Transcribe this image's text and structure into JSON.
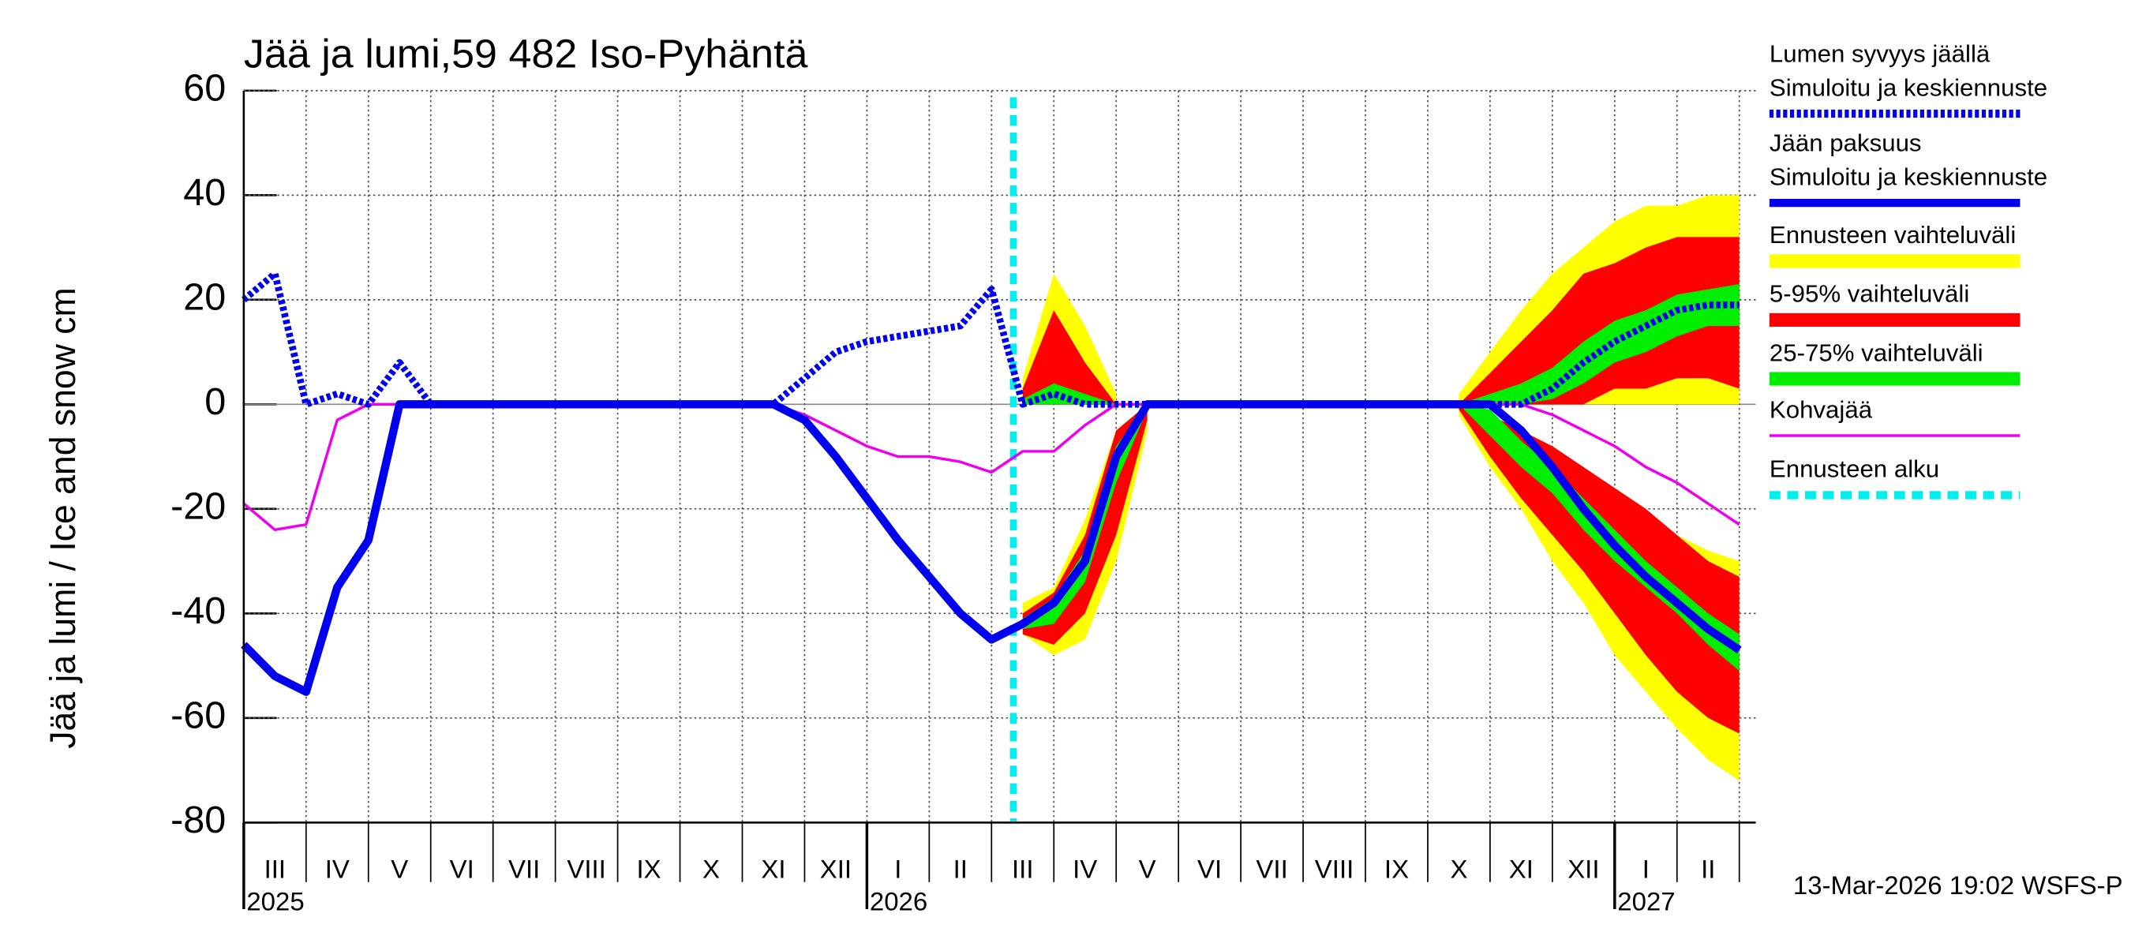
{
  "chart_data": {
    "type": "line",
    "title": "Jää ja lumi,59 482 Iso-Pyhäntä",
    "y_label": "Jää ja lumi / Ice and snow    cm",
    "footer": "13-Mar-2026 19:02 WSFS-P",
    "years": [
      "2025",
      "2026",
      "2027"
    ],
    "categories": [
      null,
      "III",
      null,
      "IV",
      null,
      "V",
      null,
      "VI",
      null,
      "VII",
      null,
      "VIII",
      null,
      "IX",
      null,
      "X",
      null,
      "XI",
      null,
      "XII",
      null,
      "I",
      null,
      "II",
      null,
      "III",
      null,
      "IV",
      null,
      "V",
      null,
      "VI",
      null,
      "VII",
      null,
      "VIII",
      null,
      "IX",
      null,
      "X",
      null,
      "XI",
      null,
      "XII",
      null,
      "I",
      null,
      "II",
      null
    ],
    "ylim": [
      -80,
      60
    ],
    "yticks": [
      -80,
      -60,
      -40,
      -20,
      0,
      20,
      40,
      60
    ],
    "grid": true,
    "legend": "right",
    "bands": [
      {
        "name": "Ennusteen vaihteluväli",
        "color": "#ffff00",
        "snow_high": [
          null,
          null,
          null,
          null,
          null,
          null,
          null,
          null,
          null,
          null,
          null,
          null,
          null,
          null,
          null,
          null,
          null,
          null,
          null,
          null,
          null,
          null,
          null,
          null,
          null,
          5,
          25,
          15,
          2,
          null,
          null,
          null,
          null,
          null,
          null,
          null,
          null,
          null,
          null,
          2,
          10,
          18,
          25,
          30,
          35,
          38,
          38,
          40,
          40
        ],
        "snow_low": [
          null,
          null,
          null,
          null,
          null,
          null,
          null,
          null,
          null,
          null,
          null,
          null,
          null,
          null,
          null,
          null,
          null,
          null,
          null,
          null,
          null,
          null,
          null,
          null,
          null,
          0,
          0,
          0,
          0,
          null,
          null,
          null,
          null,
          null,
          null,
          null,
          null,
          null,
          null,
          0,
          0,
          0,
          0,
          0,
          0,
          0,
          0,
          0,
          0
        ],
        "ice_high": [
          null,
          null,
          null,
          null,
          null,
          null,
          null,
          null,
          null,
          null,
          null,
          null,
          null,
          null,
          null,
          null,
          null,
          null,
          null,
          null,
          null,
          null,
          null,
          null,
          null,
          -38,
          -35,
          -22,
          -5,
          0,
          null,
          null,
          null,
          null,
          null,
          null,
          null,
          null,
          null,
          0,
          -2,
          -5,
          -10,
          -15,
          -18,
          -22,
          -25,
          -28,
          -30
        ],
        "ice_low": [
          null,
          null,
          null,
          null,
          null,
          null,
          null,
          null,
          null,
          null,
          null,
          null,
          null,
          null,
          null,
          null,
          null,
          null,
          null,
          null,
          null,
          null,
          null,
          null,
          null,
          -44,
          -48,
          -45,
          -30,
          -5,
          null,
          null,
          null,
          null,
          null,
          null,
          null,
          null,
          null,
          -2,
          -12,
          -20,
          -30,
          -38,
          -48,
          -55,
          -62,
          -68,
          -72
        ]
      },
      {
        "name": "5-95% vaihteluväli",
        "color": "#ff0000",
        "snow_high": [
          null,
          null,
          null,
          null,
          null,
          null,
          null,
          null,
          null,
          null,
          null,
          null,
          null,
          null,
          null,
          null,
          null,
          null,
          null,
          null,
          null,
          null,
          null,
          null,
          null,
          3,
          18,
          8,
          0,
          null,
          null,
          null,
          null,
          null,
          null,
          null,
          null,
          null,
          null,
          0,
          6,
          12,
          18,
          25,
          27,
          30,
          32,
          32,
          32
        ],
        "snow_low": [
          null,
          null,
          null,
          null,
          null,
          null,
          null,
          null,
          null,
          null,
          null,
          null,
          null,
          null,
          null,
          null,
          null,
          null,
          null,
          null,
          null,
          null,
          null,
          null,
          null,
          0,
          0,
          0,
          0,
          null,
          null,
          null,
          null,
          null,
          null,
          null,
          null,
          null,
          null,
          0,
          0,
          0,
          0,
          0,
          3,
          3,
          5,
          5,
          3
        ],
        "ice_high": [
          null,
          null,
          null,
          null,
          null,
          null,
          null,
          null,
          null,
          null,
          null,
          null,
          null,
          null,
          null,
          null,
          null,
          null,
          null,
          null,
          null,
          null,
          null,
          null,
          null,
          -40,
          -36,
          -25,
          -5,
          0,
          null,
          null,
          null,
          null,
          null,
          null,
          null,
          null,
          null,
          0,
          -2,
          -5,
          -8,
          -12,
          -16,
          -20,
          -25,
          -30,
          -33
        ],
        "ice_low": [
          null,
          null,
          null,
          null,
          null,
          null,
          null,
          null,
          null,
          null,
          null,
          null,
          null,
          null,
          null,
          null,
          null,
          null,
          null,
          null,
          null,
          null,
          null,
          null,
          null,
          -44,
          -46,
          -40,
          -25,
          -3,
          null,
          null,
          null,
          null,
          null,
          null,
          null,
          null,
          null,
          -1,
          -10,
          -18,
          -25,
          -32,
          -40,
          -48,
          -55,
          -60,
          -63
        ]
      },
      {
        "name": "25-75% vaihteluväli",
        "color": "#00ee00",
        "snow_high": [
          null,
          null,
          null,
          null,
          null,
          null,
          null,
          null,
          null,
          null,
          null,
          null,
          null,
          null,
          null,
          null,
          null,
          null,
          null,
          null,
          null,
          null,
          null,
          null,
          null,
          1,
          4,
          2,
          0,
          null,
          null,
          null,
          null,
          null,
          null,
          null,
          null,
          null,
          null,
          0,
          2,
          4,
          7,
          12,
          16,
          18,
          21,
          22,
          23
        ],
        "snow_low": [
          null,
          null,
          null,
          null,
          null,
          null,
          null,
          null,
          null,
          null,
          null,
          null,
          null,
          null,
          null,
          null,
          null,
          null,
          null,
          null,
          null,
          null,
          null,
          null,
          null,
          0,
          0,
          0,
          0,
          null,
          null,
          null,
          null,
          null,
          null,
          null,
          null,
          null,
          null,
          0,
          0,
          0,
          1,
          4,
          8,
          10,
          13,
          15,
          15
        ],
        "ice_high": [
          null,
          null,
          null,
          null,
          null,
          null,
          null,
          null,
          null,
          null,
          null,
          null,
          null,
          null,
          null,
          null,
          null,
          null,
          null,
          null,
          null,
          null,
          null,
          null,
          null,
          -41,
          -37,
          -28,
          -8,
          0,
          null,
          null,
          null,
          null,
          null,
          null,
          null,
          null,
          null,
          0,
          -1,
          -7,
          -12,
          -18,
          -24,
          -30,
          -35,
          -40,
          -44
        ],
        "ice_low": [
          null,
          null,
          null,
          null,
          null,
          null,
          null,
          null,
          null,
          null,
          null,
          null,
          null,
          null,
          null,
          null,
          null,
          null,
          null,
          null,
          null,
          null,
          null,
          null,
          null,
          -43,
          -42,
          -34,
          -15,
          -1,
          null,
          null,
          null,
          null,
          null,
          null,
          null,
          null,
          null,
          0,
          -6,
          -12,
          -17,
          -24,
          -30,
          -35,
          -40,
          -46,
          -51
        ]
      }
    ],
    "series": [
      {
        "name": [
          "Lumen syvyys jäällä",
          "Simuloitu ja keskiennuste"
        ],
        "color": "#0000ee",
        "dashed": true,
        "values": [
          20,
          25,
          0,
          2,
          0,
          8,
          0,
          0,
          0,
          0,
          0,
          0,
          0,
          0,
          0,
          0,
          0,
          0,
          5,
          10,
          12,
          13,
          14,
          15,
          22,
          0,
          2,
          0,
          0,
          0,
          0,
          0,
          0,
          0,
          0,
          0,
          0,
          0,
          0,
          0,
          0,
          0,
          3,
          8,
          12,
          15,
          18,
          19,
          19
        ]
      },
      {
        "name": [
          "Jään paksuus",
          "Simuloitu ja keskiennuste"
        ],
        "color": "#0000ee",
        "dashed": false,
        "values": [
          -46,
          -52,
          -55,
          -35,
          -26,
          0,
          0,
          0,
          0,
          0,
          0,
          0,
          0,
          0,
          0,
          0,
          0,
          0,
          -3,
          -10,
          -18,
          -26,
          -33,
          -40,
          -45,
          -42,
          -38,
          -30,
          -10,
          0,
          0,
          0,
          0,
          0,
          0,
          0,
          0,
          0,
          0,
          0,
          0,
          -5,
          -12,
          -20,
          -27,
          -33,
          -38,
          -43,
          -47
        ]
      },
      {
        "name": [
          "Kohvajää"
        ],
        "color": "#ee00ee",
        "dashed": false,
        "values": [
          -19,
          -24,
          -23,
          -3,
          0,
          0,
          0,
          0,
          0,
          0,
          0,
          0,
          0,
          0,
          0,
          0,
          0,
          0,
          -2,
          -5,
          -8,
          -10,
          -10,
          -11,
          -13,
          -9,
          -9,
          -4,
          0,
          0,
          0,
          0,
          0,
          0,
          0,
          0,
          0,
          0,
          0,
          0,
          0,
          0,
          -2,
          -5,
          -8,
          -12,
          -15,
          -19,
          -23
        ]
      }
    ],
    "forecast_start": {
      "name": "Ennusteen alku",
      "color": "#00eeee"
    }
  }
}
